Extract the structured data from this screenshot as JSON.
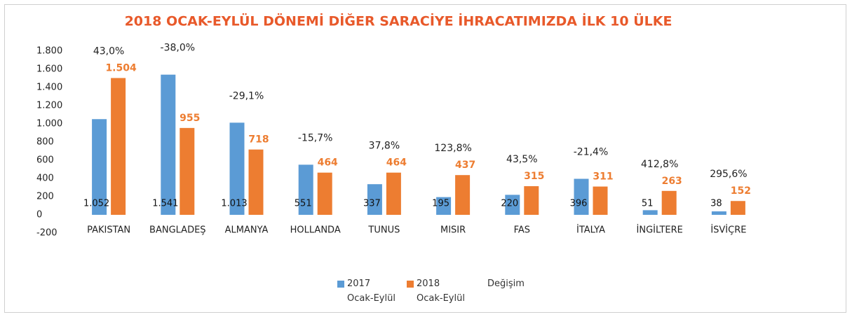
{
  "chart_data": {
    "type": "bar",
    "title": "2018 OCAK-EYLÜL DÖNEMİ DİĞER SARACİYE İHRACATIMIZDA İLK  10 ÜLKE",
    "categories": [
      "PAKISTAN",
      "BANGLADEŞ",
      "ALMANYA",
      "HOLLANDA",
      "TUNUS",
      "MISIR",
      "FAS",
      "İTALYA",
      "İNGİLTERE",
      "İSVİÇRE"
    ],
    "series": [
      {
        "name": "2017\nOcak-Eylül",
        "color": "#5b9bd5",
        "values": [
          1052,
          1541,
          1013,
          551,
          337,
          195,
          220,
          396,
          51,
          38
        ],
        "value_labels": [
          "1.052",
          "1.541",
          "1.013",
          "551",
          "337",
          "195",
          "220",
          "396",
          "51",
          "38"
        ]
      },
      {
        "name": "2018\nOcak-Eylül",
        "color": "#ed7d31",
        "values": [
          1504,
          955,
          718,
          464,
          464,
          437,
          315,
          311,
          263,
          152
        ],
        "value_labels": [
          "1.504",
          "955",
          "718",
          "464",
          "464",
          "437",
          "315",
          "311",
          "263",
          "152"
        ]
      },
      {
        "name": "Değişim",
        "values": [
          43.0,
          -38.0,
          -29.1,
          -15.7,
          37.8,
          123.8,
          43.5,
          -21.4,
          412.8,
          295.6
        ],
        "value_labels": [
          "43,0%",
          "-38,0%",
          "-29,1%",
          "-15,7%",
          "37,8%",
          "123,8%",
          "43,5%",
          "-21,4%",
          "412,8%",
          "295,6%"
        ]
      }
    ],
    "ylim": [
      -200,
      1800
    ],
    "yticks": [
      -200,
      0,
      200,
      400,
      600,
      800,
      {
        "value": 1000,
        "label": "1.000"
      },
      {
        "value": 1200,
        "label": "1.200"
      },
      {
        "value": 1400,
        "label": "1.400"
      },
      {
        "value": 1600,
        "label": "1.600"
      },
      {
        "value": 1800,
        "label": "1.800"
      }
    ],
    "grid": false
  }
}
